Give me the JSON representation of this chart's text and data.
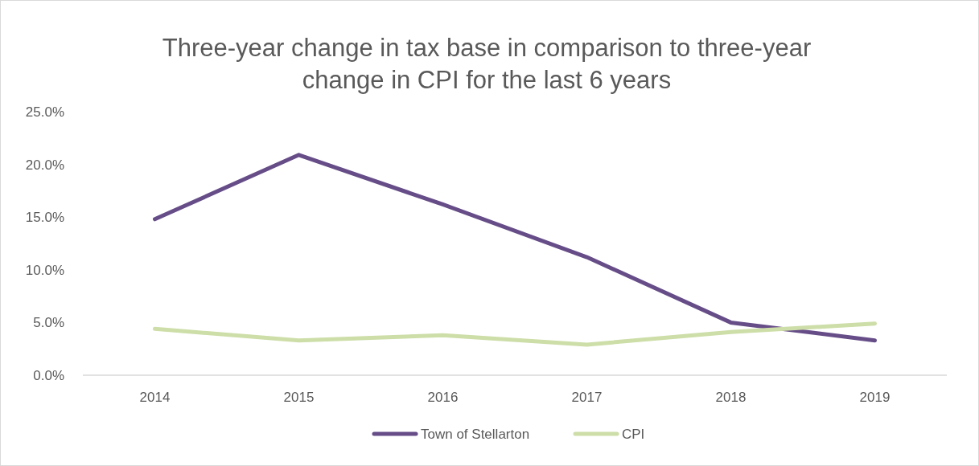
{
  "chart_data": {
    "type": "line",
    "title": "Three-year change in tax base in comparison to three-year change in CPI for the last 6 years",
    "categories": [
      "2014",
      "2015",
      "2016",
      "2017",
      "2018",
      "2019"
    ],
    "series": [
      {
        "name": "Town of Stellarton",
        "color": "#664d88",
        "values": [
          14.8,
          20.9,
          16.2,
          11.2,
          5.0,
          3.3
        ]
      },
      {
        "name": "CPI",
        "color": "#cddea8",
        "values": [
          4.4,
          3.3,
          3.8,
          2.9,
          4.1,
          4.9
        ]
      }
    ],
    "ylim": [
      0,
      25
    ],
    "yticks": [
      {
        "value": 0,
        "label": "0.0%"
      },
      {
        "value": 5,
        "label": "5.0%"
      },
      {
        "value": 10,
        "label": "10.0%"
      },
      {
        "value": 15,
        "label": "15.0%"
      },
      {
        "value": 20,
        "label": "20.0%"
      },
      {
        "value": 25,
        "label": "25.0%"
      }
    ],
    "grid": false,
    "legend": "bottom",
    "marker": "none",
    "line_style": "solid"
  }
}
